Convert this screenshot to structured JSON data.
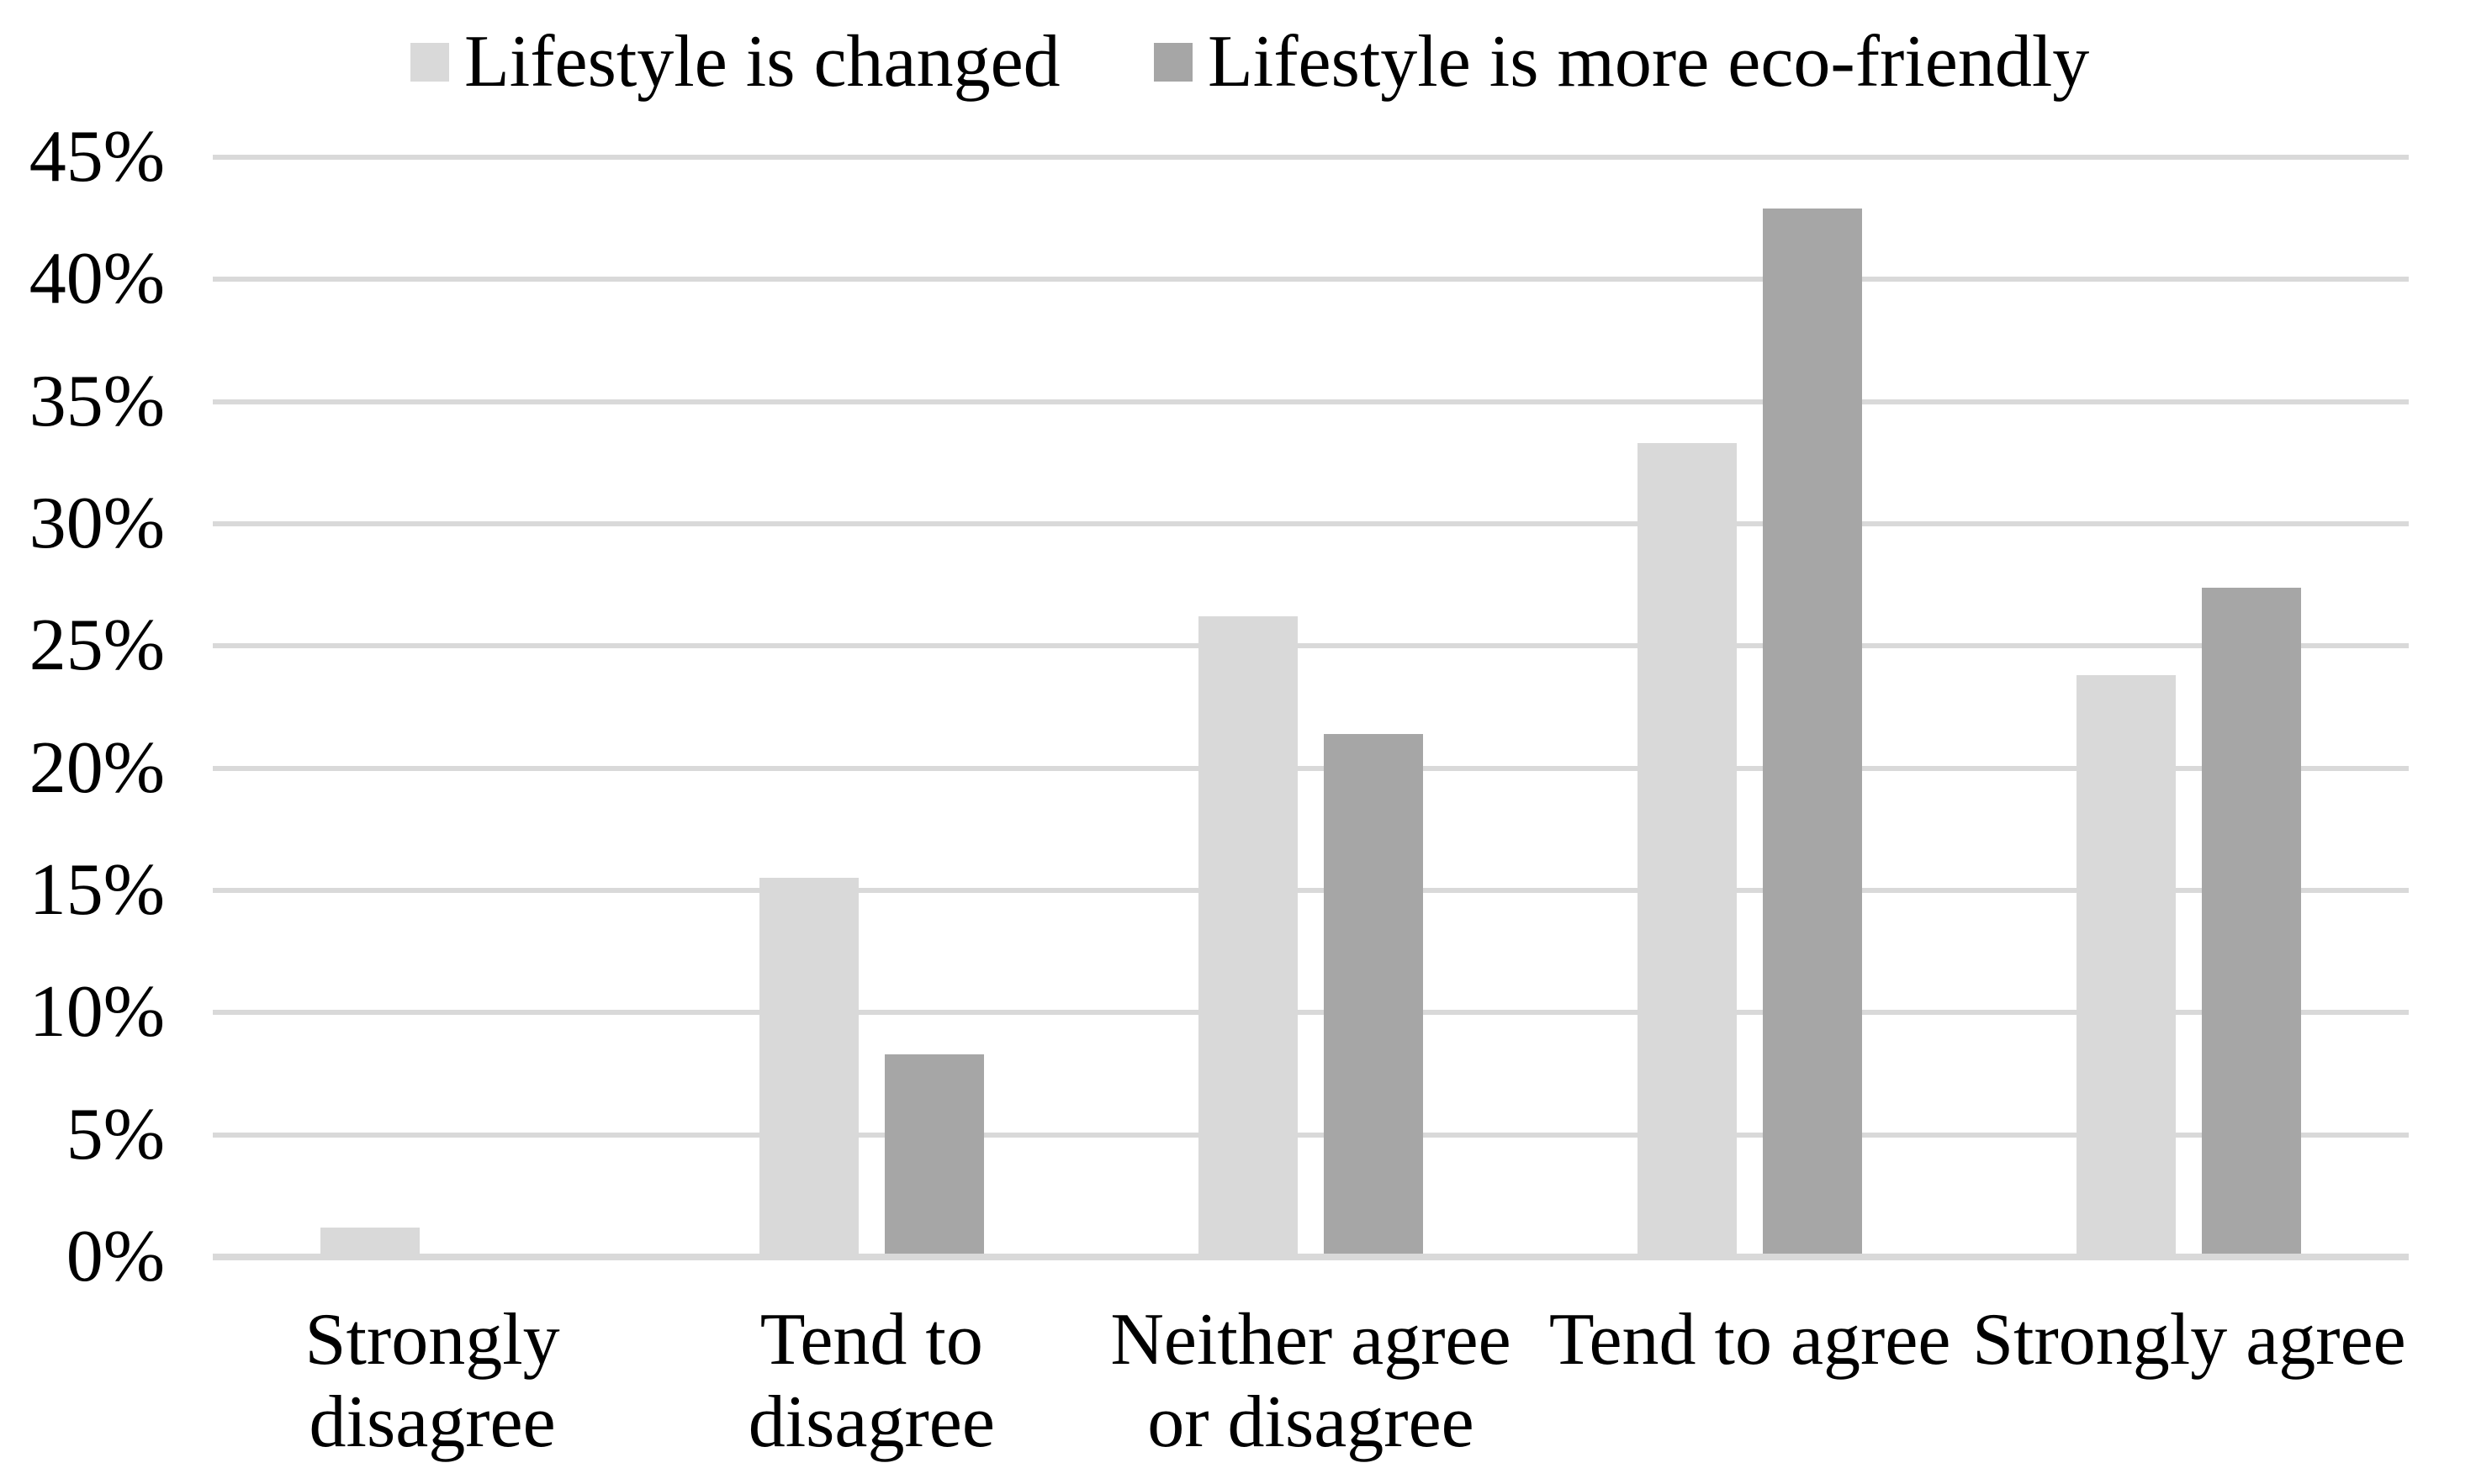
{
  "chart_data": {
    "type": "bar",
    "title": "",
    "xlabel": "",
    "ylabel": "",
    "categories": [
      "Strongly disagree",
      "Tend to disagree",
      "Neither agree or disagree",
      "Tend to agree",
      "Strongly agree"
    ],
    "categories_display": [
      "Strongly\ndisagree",
      "Tend to\ndisagree",
      "Neither agree\nor disagree",
      "Tend to agree",
      "Strongly agree"
    ],
    "series": [
      {
        "name": "Lifestyle is changed",
        "color": "#d9d9d9",
        "values": [
          1.2,
          15.5,
          26.2,
          33.3,
          23.8
        ]
      },
      {
        "name": "Lifestyle is more eco-friendly",
        "color": "#a6a6a6",
        "values": [
          0,
          8.3,
          21.4,
          42.9,
          27.4
        ]
      }
    ],
    "ylim": [
      0,
      45
    ],
    "ytick_step": 5,
    "ytick_labels": [
      "0%",
      "5%",
      "10%",
      "15%",
      "20%",
      "25%",
      "30%",
      "35%",
      "40%",
      "45%"
    ],
    "grid": "horizontal",
    "gridline_color": "#d9d9d9",
    "axis_line_color": "#d9d9d9",
    "legend_position": "top",
    "background_color": "#ffffff",
    "text_color": "#000000"
  }
}
